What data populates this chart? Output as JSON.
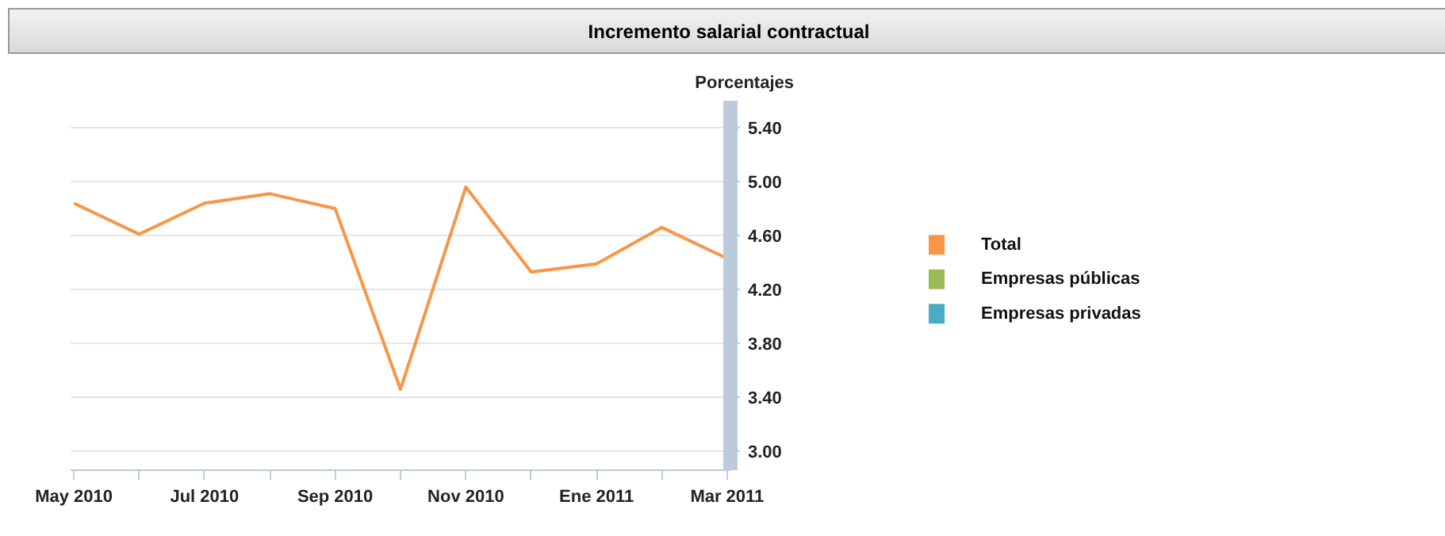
{
  "chart_data": {
    "type": "line",
    "title": "Incremento salarial contractual",
    "ylabel": "Porcentajes",
    "categories": [
      "May 2010",
      null,
      "Jul 2010",
      null,
      "Sep 2010",
      null,
      "Nov 2010",
      null,
      "Ene 2011",
      null,
      "Mar 2011"
    ],
    "series": [
      {
        "name": "Total",
        "color": "#f79646",
        "values": [
          4.84,
          4.61,
          4.84,
          4.91,
          4.8,
          3.46,
          4.96,
          4.33,
          4.39,
          4.66,
          4.43
        ]
      },
      {
        "name": "Empresas públicas",
        "color": "#9bbb59",
        "values": [
          null,
          null,
          null,
          null,
          null,
          null,
          null,
          null,
          null,
          null,
          null
        ]
      },
      {
        "name": "Empresas privadas",
        "color": "#4bacc6",
        "values": [
          null,
          null,
          null,
          null,
          null,
          null,
          null,
          null,
          null,
          null,
          null
        ]
      }
    ],
    "ylim": [
      2.86,
      5.6
    ],
    "yticks": [
      {
        "value": 3.0,
        "label": "3.00"
      },
      {
        "value": 3.4,
        "label": "3.40"
      },
      {
        "value": 3.8,
        "label": "3.80"
      },
      {
        "value": 4.2,
        "label": "4.20"
      },
      {
        "value": 4.6,
        "label": "4.60"
      },
      {
        "value": 5.0,
        "label": "5.00"
      },
      {
        "value": 5.4,
        "label": "5.40"
      }
    ],
    "grid": "y",
    "legend": "right",
    "marker": "none",
    "line_style": "solid"
  }
}
